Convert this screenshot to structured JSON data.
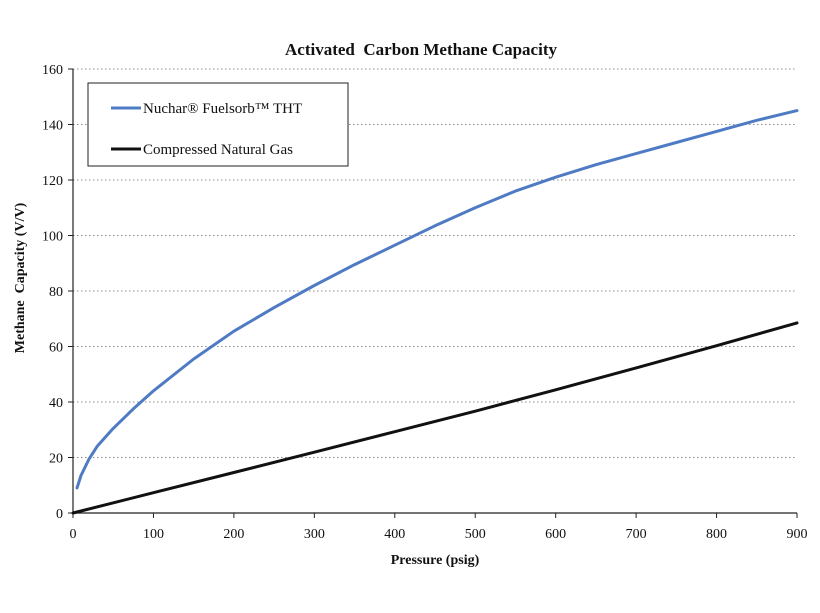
{
  "chart_data": {
    "type": "line",
    "title": "Activated  Carbon Methane Capacity",
    "xlabel": "Pressure (psig)",
    "ylabel": "Methane  Capacity (V/V)",
    "xlim": [
      0,
      900
    ],
    "ylim": [
      0,
      160
    ],
    "x_ticks": [
      0,
      100,
      200,
      300,
      400,
      500,
      600,
      700,
      800,
      900
    ],
    "y_ticks": [
      0,
      20,
      40,
      60,
      80,
      100,
      120,
      140,
      160
    ],
    "grid": "horizontal-dotted",
    "legend_position": "top-left",
    "series": [
      {
        "name": "Nuchar® Fuelsorb™ THT",
        "color": "#4f7bc4",
        "x": [
          5,
          10,
          20,
          30,
          50,
          75,
          100,
          150,
          200,
          250,
          300,
          350,
          400,
          450,
          500,
          550,
          600,
          650,
          700,
          750,
          800,
          850,
          900
        ],
        "y": [
          9,
          13.5,
          19.5,
          24,
          30.5,
          37.5,
          44,
          55.5,
          65.5,
          74,
          82,
          89.5,
          96.5,
          103.5,
          110,
          116,
          121,
          125.5,
          129.5,
          133.5,
          137.5,
          141.5,
          145
        ]
      },
      {
        "name": "Compressed Natural Gas",
        "color": "#111111",
        "x": [
          0,
          100,
          200,
          300,
          400,
          500,
          600,
          700,
          800,
          900
        ],
        "y": [
          0,
          7.3,
          14.6,
          21.9,
          29.3,
          36.7,
          44.4,
          52.3,
          60.3,
          68.5
        ]
      }
    ]
  }
}
